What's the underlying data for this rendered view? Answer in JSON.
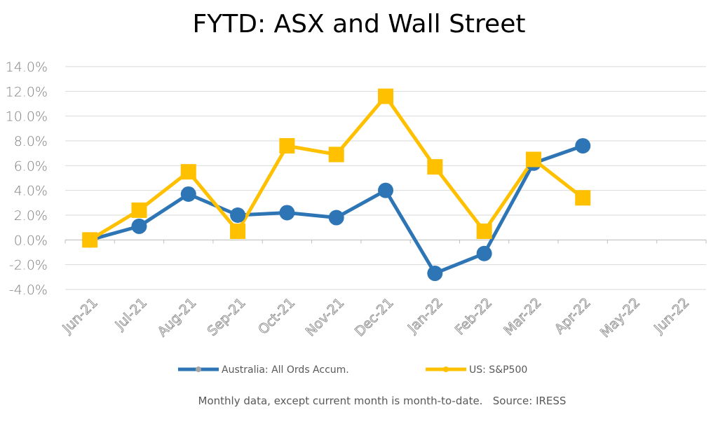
{
  "chart_data": {
    "type": "line",
    "title": "FYTD: ASX and Wall Street",
    "categories": [
      "Jun-21",
      "Jul-21",
      "Aug-21",
      "Sep-21",
      "Oct-21",
      "Nov-21",
      "Dec-21",
      "Jan-22",
      "Feb-22",
      "Mar-22",
      "Apr-22",
      "May-22",
      "Jun-22"
    ],
    "yticks": [
      "14.0%",
      "12.0%",
      "10.0%",
      "8.0%",
      "6.0%",
      "4.0%",
      "2.0%",
      "0.0%",
      "-2.0%",
      "-4.0%"
    ],
    "ylim": [
      -4,
      14
    ],
    "grid": true,
    "legend_position": "bottom",
    "series": [
      {
        "name": "Australia: All Ords Accum.",
        "color": "#2e75b6",
        "marker": "circle",
        "values": [
          0.0,
          1.1,
          3.7,
          2.0,
          2.2,
          1.8,
          4.0,
          -2.7,
          -1.1,
          6.2,
          7.6,
          null,
          null
        ]
      },
      {
        "name": "US: S&P500",
        "color": "#ffc000",
        "marker": "square",
        "values": [
          0.0,
          2.4,
          5.5,
          0.7,
          7.6,
          6.9,
          11.6,
          5.9,
          0.7,
          6.5,
          3.4,
          null,
          null
        ]
      }
    ],
    "footnote": "Monthly data, except current month is month-to-date.   Source: IRESS"
  }
}
